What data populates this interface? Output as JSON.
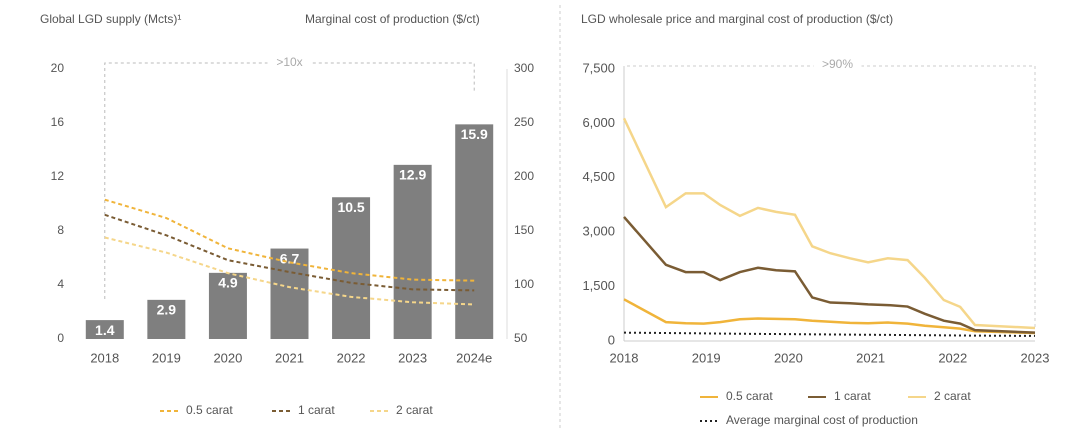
{
  "chart_data": [
    {
      "type": "bar",
      "title": "Global LGD supply (Mcts)¹",
      "y2_title": "Marginal cost of production ($/ct)",
      "annotation": ">10x",
      "categories": [
        "2018",
        "2019",
        "2020",
        "2021",
        "2022",
        "2023",
        "2024e"
      ],
      "values": [
        1.4,
        2.9,
        4.9,
        6.7,
        10.5,
        12.9,
        15.9
      ],
      "color": "#7f7f7f",
      "ylim": [
        0,
        20
      ],
      "yticks": [
        0,
        4,
        8,
        12,
        16,
        20
      ],
      "y2lim": [
        50,
        300
      ],
      "y2ticks": [
        50,
        100,
        150,
        200,
        250,
        300
      ],
      "series": [
        {
          "name": "0.5 carat",
          "color": "#f0b43a",
          "style": "dashed",
          "axis": "y2",
          "values": [
            179,
            162,
            134,
            121,
            111,
            105,
            104
          ]
        },
        {
          "name": "1 carat",
          "color": "#7a5c34",
          "style": "dashed",
          "axis": "y2",
          "values": [
            165,
            146,
            123,
            112,
            102,
            96,
            95
          ]
        },
        {
          "name": "2 carat",
          "color": "#f5d68a",
          "style": "dashed",
          "axis": "y2",
          "values": [
            144,
            130,
            111,
            98,
            89,
            84,
            82
          ]
        }
      ]
    },
    {
      "type": "line",
      "title": "LGD wholesale price and marginal cost of production ($/ct)",
      "annotation": ">90%",
      "x": [
        2018,
        2018.51,
        2018.75,
        2018.97,
        2019.17,
        2019.41,
        2019.63,
        2019.85,
        2020.08,
        2020.29,
        2020.51,
        2020.75,
        2020.97,
        2021.21,
        2021.45,
        2021.66,
        2021.89,
        2022.09,
        2022.27,
        2023
      ],
      "xlim": [
        2018,
        2023
      ],
      "xticks": [
        2018,
        2019,
        2020,
        2021,
        2022,
        2023
      ],
      "ylim": [
        0,
        7500
      ],
      "yticks": [
        0,
        {
          "value": 1500,
          "label": "1,500"
        },
        {
          "value": 3000,
          "label": "3,000"
        },
        {
          "value": 4500,
          "label": "4,500"
        },
        {
          "value": 6000,
          "label": "6,000"
        },
        {
          "value": 7500,
          "label": "7,500"
        }
      ],
      "series": [
        {
          "name": "0.5 carat",
          "color": "#f0b43a",
          "style": "solid",
          "values": [
            1150,
            520,
            490,
            480,
            520,
            600,
            620,
            610,
            600,
            560,
            530,
            500,
            490,
            510,
            480,
            420,
            380,
            340,
            270,
            220
          ]
        },
        {
          "name": "1 carat",
          "color": "#7a5c34",
          "style": "solid",
          "values": [
            3420,
            2100,
            1900,
            1900,
            1680,
            1900,
            2020,
            1950,
            1920,
            1200,
            1060,
            1040,
            1010,
            990,
            950,
            750,
            560,
            480,
            300,
            230
          ]
        },
        {
          "name": "2 carat",
          "color": "#f5d68a",
          "style": "solid",
          "values": [
            6140,
            3690,
            4070,
            4070,
            3750,
            3450,
            3670,
            3560,
            3480,
            2610,
            2420,
            2280,
            2170,
            2280,
            2230,
            1740,
            1130,
            940,
            440,
            360
          ]
        },
        {
          "name": "Average marginal cost of production",
          "color": "#222222",
          "style": "dotted",
          "values": [
            230,
            220,
            215,
            210,
            205,
            200,
            196,
            192,
            188,
            184,
            180,
            176,
            172,
            168,
            164,
            160,
            156,
            152,
            148,
            140
          ]
        }
      ]
    }
  ]
}
